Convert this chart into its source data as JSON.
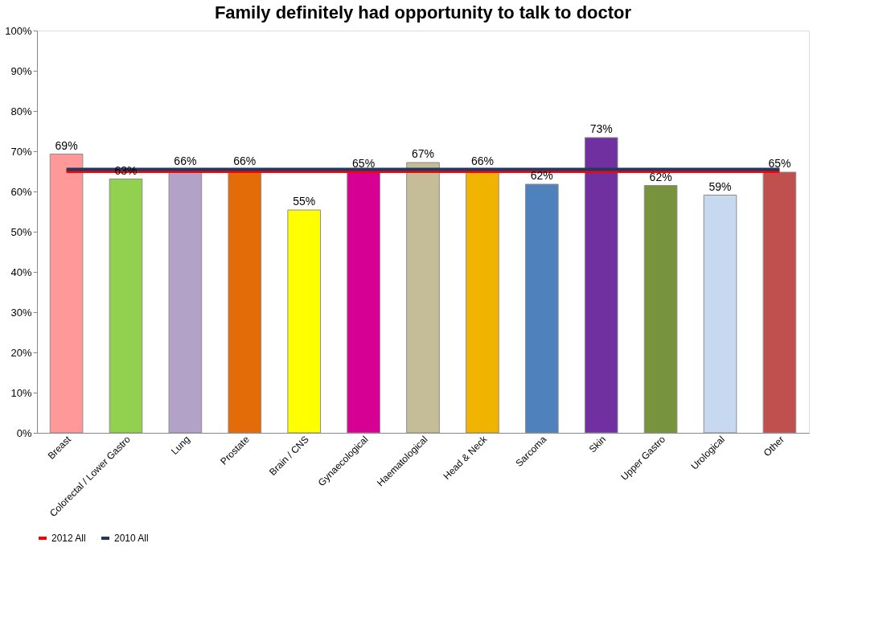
{
  "chart_data": {
    "type": "bar",
    "title": "Family definitely had opportunity to talk to doctor",
    "categories": [
      "Breast",
      "Colorectal / Lower Gastro",
      "Lung",
      "Prostate",
      "Brain / CNS",
      "Gynaecological",
      "Haematological",
      "Head & Neck",
      "Sarcoma",
      "Skin",
      "Upper Gastro",
      "Urological",
      "Other"
    ],
    "ylim": [
      0,
      100
    ],
    "yticks": [
      {
        "value": 0,
        "label": "0%"
      },
      {
        "value": 10,
        "label": "10%"
      },
      {
        "value": 20,
        "label": "20%"
      },
      {
        "value": 30,
        "label": "30%"
      },
      {
        "value": 40,
        "label": "40%"
      },
      {
        "value": 50,
        "label": "50%"
      },
      {
        "value": 60,
        "label": "60%"
      },
      {
        "value": 70,
        "label": "70%"
      },
      {
        "value": 80,
        "label": "80%"
      },
      {
        "value": 90,
        "label": "90%"
      },
      {
        "value": 100,
        "label": "100%"
      }
    ],
    "grid": false,
    "legend": "bottom",
    "series": [
      {
        "values": [
          69.3,
          63.1,
          65.5,
          65.5,
          55.4,
          64.8,
          67.2,
          65.5,
          61.8,
          73.4,
          61.5,
          59.1,
          64.8
        ],
        "colors": [
          "#ff9999",
          "#92d050",
          "#b2a2c7",
          "#e36c09",
          "#ffff00",
          "#d60093",
          "#c4bd97",
          "#f0b400",
          "#4f81bd",
          "#7030a0",
          "#77933c",
          "#c6d9f1",
          "#c0504d"
        ],
        "value_labels": [
          "69%",
          "63%",
          "66%",
          "66%",
          "55%",
          "65%",
          "67%",
          "66%",
          "62%",
          "73%",
          "62%",
          "59%",
          "65%"
        ]
      },
      {
        "type": "line",
        "name": "2012 All",
        "color": "#ff0000",
        "values": [
          65,
          65,
          65,
          65,
          65,
          65,
          65,
          65,
          65,
          65,
          65,
          65,
          65
        ]
      },
      {
        "type": "line",
        "name": "2010 All",
        "color": "#1f3864",
        "values": [
          65.5,
          65.5,
          65.5,
          65.5,
          65.5,
          65.5,
          65.5,
          65.5,
          65.5,
          65.5,
          65.5,
          65.5,
          65.5
        ]
      }
    ]
  }
}
